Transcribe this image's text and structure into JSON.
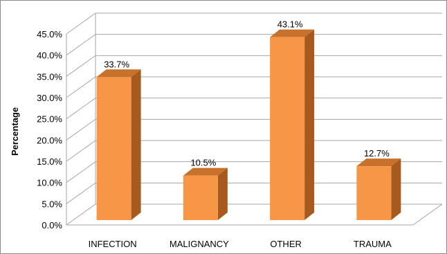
{
  "chart_data": {
    "type": "bar",
    "style": "3d-column",
    "categories": [
      "INFECTION",
      "MALIGNANCY",
      "OTHER",
      "TRAUMA"
    ],
    "values": [
      33.7,
      10.5,
      43.1,
      12.7
    ],
    "data_labels": [
      "33.7%",
      "10.5%",
      "43.1%",
      "12.7%"
    ],
    "title": "",
    "xlabel": "",
    "ylabel": "Percentage",
    "ylim": [
      0,
      45
    ],
    "y_tick_step": 5,
    "y_tick_labels": [
      "0.0%",
      "5.0%",
      "10.0%",
      "15.0%",
      "20.0%",
      "25.0%",
      "30.0%",
      "35.0%",
      "40.0%",
      "45.0%"
    ],
    "grid": true,
    "legend": "none",
    "colors": {
      "bar_front": "#F79646",
      "bar_side": "#A65A1E",
      "bar_top": "#C7712C",
      "gridline": "#A6A6A6",
      "back_wall": "#FFFFFF",
      "frame_border": "#8A8A8A"
    }
  }
}
